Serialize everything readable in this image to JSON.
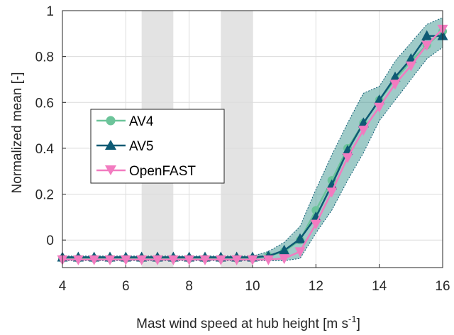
{
  "chart_data": {
    "type": "line",
    "xlabel": "Mast wind speed at hub height [m s",
    "xlabel_sup": "-1",
    "xlabel_end": "]",
    "ylabel": "Normalized mean [-]",
    "xlim": [
      4,
      16
    ],
    "ylim": [
      -0.12,
      1.0
    ],
    "xticks": [
      "4",
      "6",
      "8",
      "10",
      "12",
      "14",
      "16"
    ],
    "yticks": [
      "0",
      "0.2",
      "0.4",
      "0.6",
      "0.8",
      "1"
    ],
    "grid": true,
    "legend_position": "center-left",
    "shaded_x_ranges": [
      [
        6.5,
        7.5
      ],
      [
        9,
        10
      ]
    ],
    "x": [
      4,
      4.5,
      5,
      5.5,
      6,
      6.5,
      7,
      7.5,
      8,
      8.5,
      9,
      9.5,
      10,
      10.5,
      11,
      11.5,
      12,
      12.5,
      13,
      13.5,
      14,
      14.5,
      15,
      15.5,
      16
    ],
    "series": [
      {
        "name": "AV4",
        "color": "#6cc49a",
        "marker": "circle",
        "values": [
          -0.08,
          -0.08,
          -0.08,
          -0.08,
          -0.08,
          -0.08,
          -0.08,
          -0.08,
          -0.08,
          -0.08,
          -0.08,
          -0.08,
          -0.08,
          -0.07,
          -0.05,
          0.0,
          0.13,
          0.26,
          0.4,
          0.51,
          0.61,
          0.7,
          0.78,
          0.85,
          0.91
        ]
      },
      {
        "name": "AV5",
        "color": "#0d5a74",
        "marker": "triangle-up",
        "values": [
          -0.075,
          -0.075,
          -0.075,
          -0.075,
          -0.075,
          -0.075,
          -0.075,
          -0.075,
          -0.075,
          -0.075,
          -0.075,
          -0.075,
          -0.075,
          -0.07,
          -0.045,
          0.005,
          0.1,
          0.24,
          0.39,
          0.51,
          0.61,
          0.71,
          0.79,
          0.89,
          0.89
        ]
      },
      {
        "name": "OpenFAST",
        "color": "#f27bc0",
        "marker": "triangle-down",
        "values": [
          -0.085,
          -0.085,
          -0.085,
          -0.085,
          -0.085,
          -0.085,
          -0.085,
          -0.085,
          -0.085,
          -0.085,
          -0.085,
          -0.085,
          -0.085,
          -0.085,
          -0.08,
          -0.05,
          0.07,
          0.21,
          0.36,
          0.48,
          0.58,
          0.68,
          0.76,
          0.85,
          0.92
        ]
      }
    ],
    "band": {
      "upper": [
        -0.07,
        -0.07,
        -0.07,
        -0.07,
        -0.07,
        -0.07,
        -0.07,
        -0.07,
        -0.07,
        -0.07,
        -0.07,
        -0.07,
        -0.07,
        -0.05,
        -0.01,
        0.06,
        0.22,
        0.37,
        0.51,
        0.64,
        0.67,
        0.78,
        0.86,
        0.94,
        0.97
      ],
      "lower": [
        -0.09,
        -0.09,
        -0.09,
        -0.09,
        -0.09,
        -0.09,
        -0.09,
        -0.09,
        -0.09,
        -0.09,
        -0.09,
        -0.09,
        -0.09,
        -0.09,
        -0.09,
        -0.08,
        0.03,
        0.13,
        0.26,
        0.38,
        0.52,
        0.61,
        0.7,
        0.79,
        0.84
      ],
      "color": "#2a8c84"
    }
  }
}
